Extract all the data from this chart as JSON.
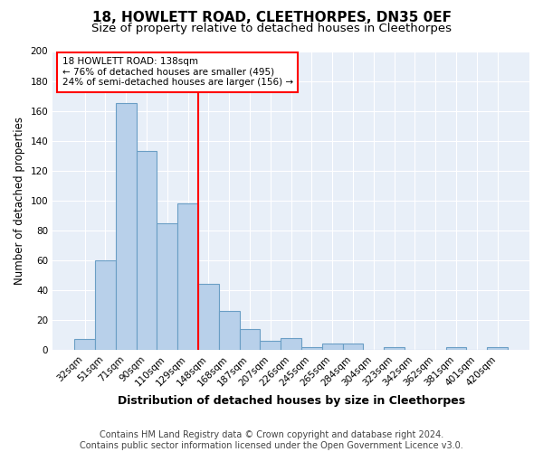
{
  "title": "18, HOWLETT ROAD, CLEETHORPES, DN35 0EF",
  "subtitle": "Size of property relative to detached houses in Cleethorpes",
  "xlabel": "Distribution of detached houses by size in Cleethorpes",
  "ylabel": "Number of detached properties",
  "categories": [
    "32sqm",
    "51sqm",
    "71sqm",
    "90sqm",
    "110sqm",
    "129sqm",
    "148sqm",
    "168sqm",
    "187sqm",
    "207sqm",
    "226sqm",
    "245sqm",
    "265sqm",
    "284sqm",
    "304sqm",
    "323sqm",
    "342sqm",
    "362sqm",
    "381sqm",
    "401sqm",
    "420sqm"
  ],
  "values": [
    7,
    60,
    165,
    133,
    85,
    98,
    44,
    26,
    14,
    6,
    8,
    2,
    4,
    4,
    0,
    2,
    0,
    0,
    2,
    0,
    2
  ],
  "bar_color": "#b8d0ea",
  "bar_edge_color": "#6a9ec5",
  "vline_x_index": 6,
  "vline_color": "red",
  "annotation_text": "18 HOWLETT ROAD: 138sqm\n← 76% of detached houses are smaller (495)\n24% of semi-detached houses are larger (156) →",
  "annotation_box_color": "white",
  "annotation_box_edge_color": "red",
  "ylim": [
    0,
    200
  ],
  "yticks": [
    0,
    20,
    40,
    60,
    80,
    100,
    120,
    140,
    160,
    180,
    200
  ],
  "footnote": "Contains HM Land Registry data © Crown copyright and database right 2024.\nContains public sector information licensed under the Open Government Licence v3.0.",
  "bg_color": "#ffffff",
  "plot_bg_color": "#e8eff8",
  "title_fontsize": 11,
  "subtitle_fontsize": 9.5,
  "xlabel_fontsize": 9,
  "ylabel_fontsize": 8.5,
  "tick_fontsize": 7.5,
  "footnote_fontsize": 7
}
